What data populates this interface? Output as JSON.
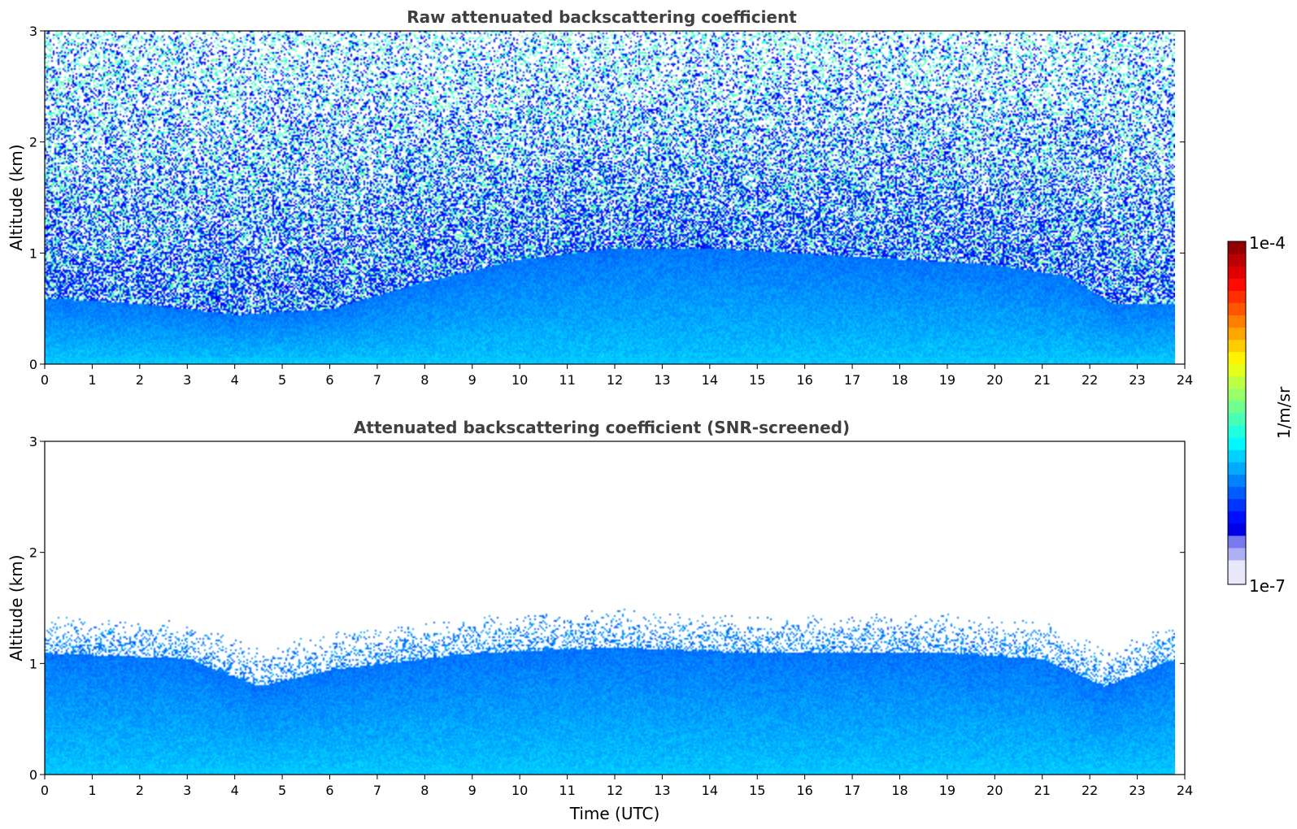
{
  "chart_data": [
    {
      "type": "heatmap",
      "title": "Raw attenuated backscattering coefficient",
      "xlabel": "",
      "ylabel": "Altitude (km)",
      "xlim": [
        0,
        24
      ],
      "ylim": [
        0,
        3
      ],
      "xticks": [
        "0",
        "1",
        "2",
        "3",
        "4",
        "5",
        "6",
        "7",
        "8",
        "9",
        "10",
        "11",
        "12",
        "13",
        "14",
        "15",
        "16",
        "17",
        "18",
        "19",
        "20",
        "21",
        "22",
        "23",
        "24"
      ],
      "yticks": [
        "0",
        "1",
        "2",
        "3"
      ],
      "data_extent_hours": [
        0,
        23.8
      ],
      "colorscale": "jet",
      "screened": false,
      "boundary_layer_top_km": [
        {
          "t": 0,
          "h": 0.6
        },
        {
          "t": 2,
          "h": 0.55
        },
        {
          "t": 4,
          "h": 0.45
        },
        {
          "t": 6,
          "h": 0.5
        },
        {
          "t": 8,
          "h": 0.75
        },
        {
          "t": 10,
          "h": 0.95
        },
        {
          "t": 12,
          "h": 1.05
        },
        {
          "t": 14,
          "h": 1.05
        },
        {
          "t": 16,
          "h": 1.0
        },
        {
          "t": 18,
          "h": 0.95
        },
        {
          "t": 20,
          "h": 0.9
        },
        {
          "t": 21.5,
          "h": 0.8
        },
        {
          "t": 22.5,
          "h": 0.55
        },
        {
          "t": 23.8,
          "h": 0.55
        }
      ]
    },
    {
      "type": "heatmap",
      "title": "Attenuated backscattering coefficient (SNR-screened)",
      "xlabel": "Time (UTC)",
      "ylabel": "Altitude (km)",
      "xlim": [
        0,
        24
      ],
      "ylim": [
        0,
        3
      ],
      "xticks": [
        "0",
        "1",
        "2",
        "3",
        "4",
        "5",
        "6",
        "7",
        "8",
        "9",
        "10",
        "11",
        "12",
        "13",
        "14",
        "15",
        "16",
        "17",
        "18",
        "19",
        "20",
        "21",
        "22",
        "23",
        "24"
      ],
      "yticks": [
        "0",
        "1",
        "2",
        "3"
      ],
      "data_extent_hours": [
        0,
        23.8
      ],
      "colorscale": "jet",
      "screened": true,
      "screened_top_km": [
        {
          "t": 0,
          "h": 1.1
        },
        {
          "t": 3,
          "h": 1.05
        },
        {
          "t": 4.5,
          "h": 0.8
        },
        {
          "t": 6,
          "h": 0.95
        },
        {
          "t": 9,
          "h": 1.1
        },
        {
          "t": 12,
          "h": 1.15
        },
        {
          "t": 15,
          "h": 1.1
        },
        {
          "t": 19,
          "h": 1.1
        },
        {
          "t": 21,
          "h": 1.05
        },
        {
          "t": 22.3,
          "h": 0.8
        },
        {
          "t": 23.8,
          "h": 1.05
        }
      ]
    }
  ],
  "colorbar": {
    "label": "1/m/sr",
    "max_label": "1e-4",
    "min_label": "1e-7",
    "range": [
      1e-07,
      0.0001
    ],
    "scale": "log"
  },
  "colors": {
    "title": "#404040",
    "missing": "#ffffff"
  }
}
